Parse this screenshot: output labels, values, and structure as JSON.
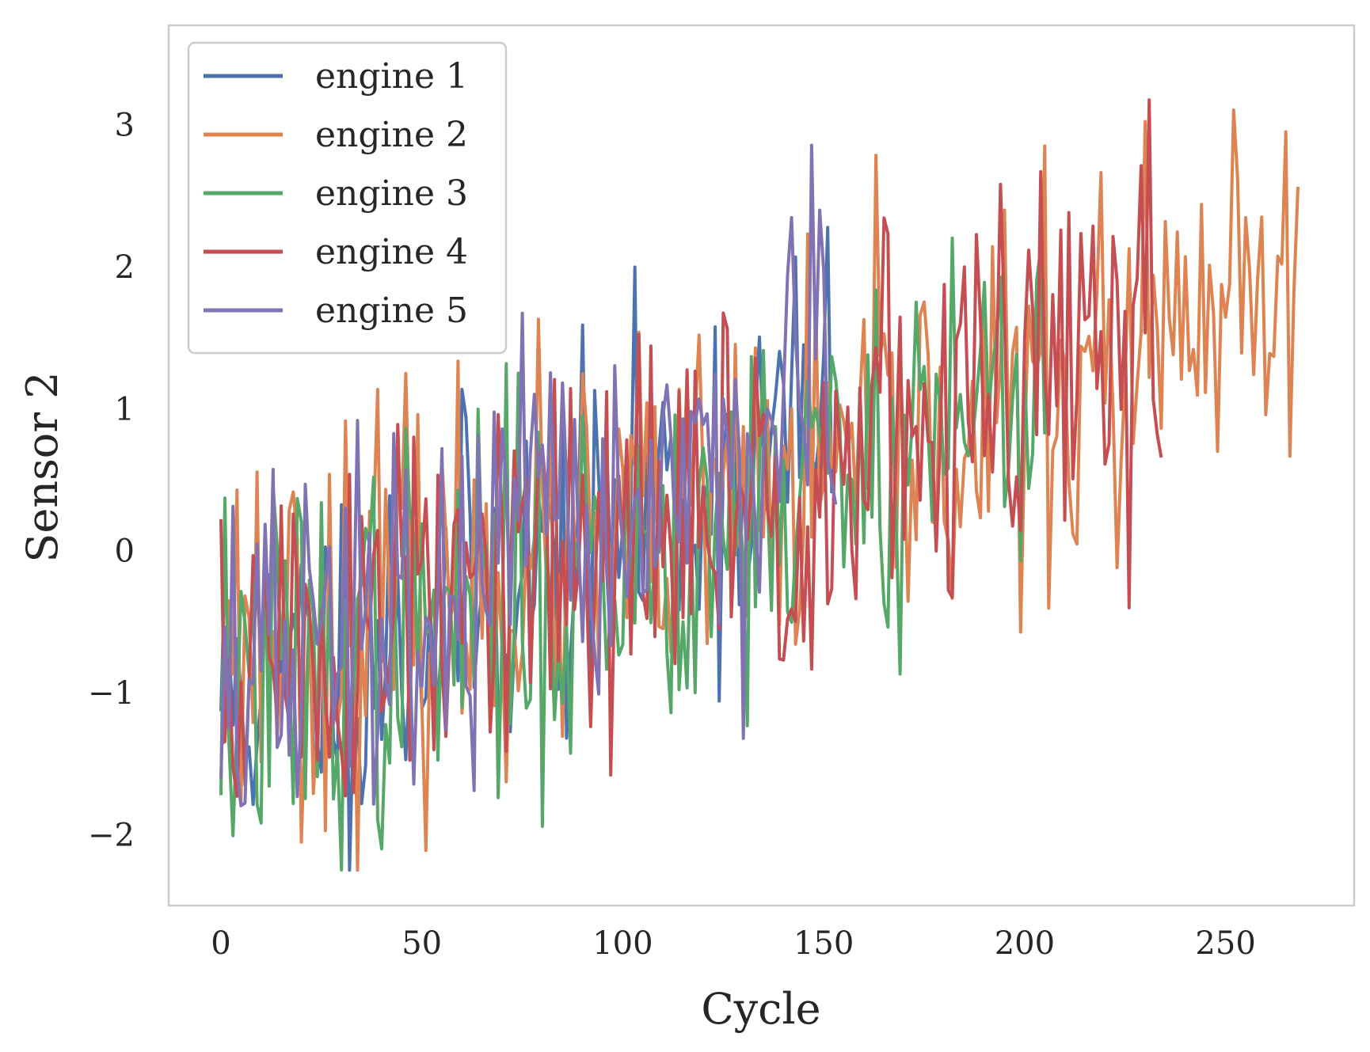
{
  "chart_data": {
    "type": "line",
    "title": "",
    "xlabel": "Cycle",
    "ylabel": "Sensor 2",
    "xlim": [
      -13,
      282
    ],
    "ylim": [
      -2.5,
      3.7
    ],
    "xticks": [
      0,
      50,
      100,
      150,
      200,
      250
    ],
    "xtick_labels": [
      "0",
      "50",
      "100",
      "150",
      "200",
      "250"
    ],
    "yticks": [
      -2,
      -1,
      0,
      1,
      2,
      3
    ],
    "ytick_labels": [
      "−2",
      "−1",
      "0",
      "1",
      "2",
      "3"
    ],
    "grid": false,
    "legend_position": "upper-left",
    "series": [
      {
        "name": "engine 1",
        "color": "#4c72b0",
        "length": 153,
        "start": -0.95,
        "end": 1.0,
        "amp": 0.65,
        "seed": 11
      },
      {
        "name": "engine 2",
        "color": "#dd8452",
        "length": 269,
        "start": -0.6,
        "end": 1.75,
        "amp": 0.7,
        "seed": 23
      },
      {
        "name": "engine 3",
        "color": "#55a868",
        "length": 206,
        "start": -0.95,
        "end": 1.3,
        "amp": 0.7,
        "seed": 37
      },
      {
        "name": "engine 4",
        "color": "#c44e52",
        "length": 235,
        "start": -0.8,
        "end": 1.6,
        "amp": 0.75,
        "seed": 51
      },
      {
        "name": "engine 5",
        "color": "#8172b3",
        "length": 154,
        "start": -0.9,
        "end": 1.1,
        "amp": 0.7,
        "seed": 67
      }
    ]
  }
}
